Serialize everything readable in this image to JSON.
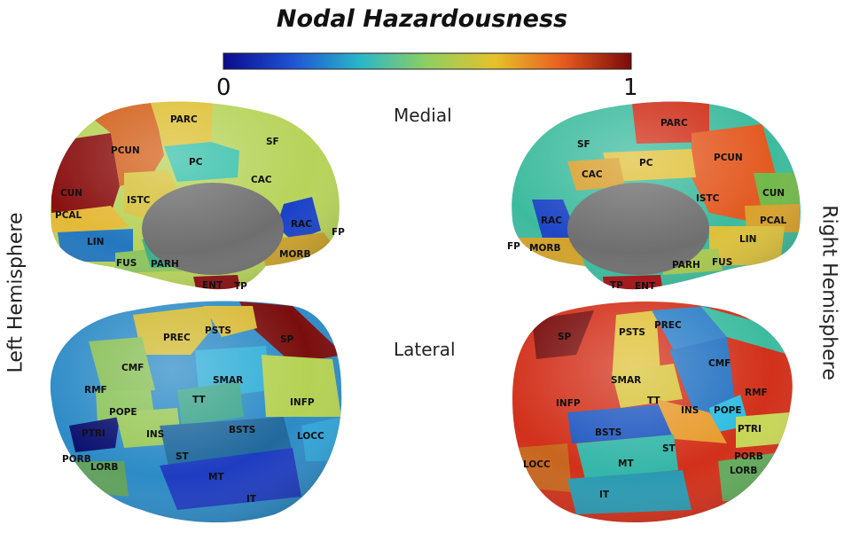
{
  "title": "Nodal Hazardousness",
  "colorbar": {
    "min_label": "0",
    "max_label": "1",
    "stops": [
      "#0b0b8c",
      "#1f52d4",
      "#29b6c8",
      "#8fcf60",
      "#e6c22a",
      "#e85a1e",
      "#7a0a0a"
    ]
  },
  "views": {
    "medial": "Medial",
    "lateral": "Lateral"
  },
  "hemispheres": {
    "left": "Left Hemisphere",
    "right": "Right Hemisphere"
  },
  "regions": {
    "left_medial": [
      "PARC",
      "SF",
      "PCUN",
      "PC",
      "CAC",
      "CUN",
      "ISTC",
      "PCAL",
      "RAC",
      "FP",
      "LIN",
      "FUS",
      "PARH",
      "MORB",
      "ENT",
      "TP"
    ],
    "right_medial": [
      "PARC",
      "SF",
      "PCUN",
      "PC",
      "CAC",
      "ISTC",
      "CUN",
      "RAC",
      "PCAL",
      "LIN",
      "FP",
      "MORB",
      "PARH",
      "FUS",
      "TP",
      "ENT"
    ],
    "left_lateral": [
      "PREC",
      "PSTS",
      "SP",
      "CMF",
      "SMAR",
      "RMF",
      "INFP",
      "POPE",
      "TT",
      "INS",
      "BSTS",
      "LOCC",
      "PTRI",
      "ST",
      "PORB",
      "MT",
      "LORB",
      "IT"
    ],
    "right_lateral": [
      "PSTS",
      "PREC",
      "SP",
      "CMF",
      "SMAR",
      "RMF",
      "INFP",
      "POPE",
      "TT",
      "INS",
      "PTRI",
      "BSTS",
      "LOCC",
      "ST",
      "PORB",
      "MT",
      "LORB",
      "IT"
    ]
  }
}
